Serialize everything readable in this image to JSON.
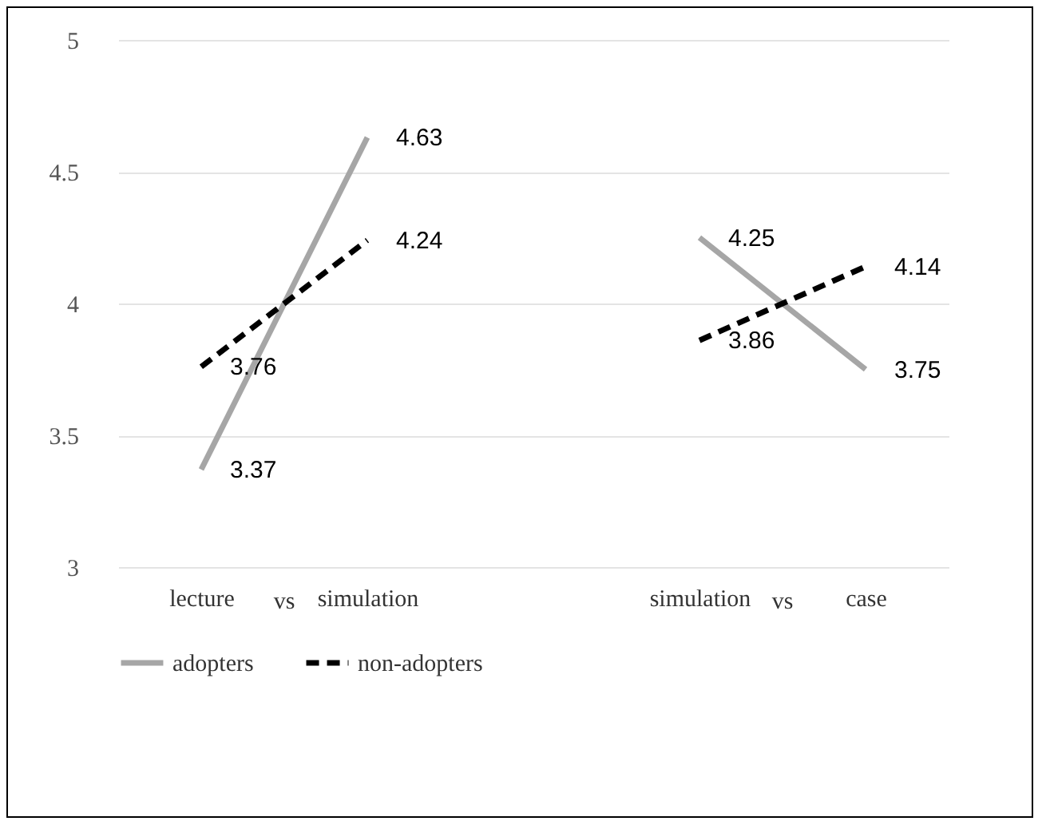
{
  "chart_data": {
    "type": "line",
    "categories": [
      "lecture",
      "simulation",
      null,
      "simulation",
      "case"
    ],
    "series": [
      {
        "name": "adopters",
        "color": "#a6a6a6",
        "line_style": "solid",
        "values": [
          3.37,
          4.63,
          null,
          4.25,
          3.75
        ]
      },
      {
        "name": "non-adopters",
        "color": "#000000",
        "line_style": "dashed",
        "values": [
          3.76,
          4.24,
          null,
          3.86,
          4.14
        ]
      }
    ],
    "ylim": [
      3,
      5
    ],
    "yticks": [
      3,
      3.5,
      4,
      4.5,
      5
    ],
    "grid": "y",
    "legend": "bottom",
    "data_labels": true,
    "marker": "none",
    "annotations": [
      "vs",
      "vs"
    ]
  }
}
